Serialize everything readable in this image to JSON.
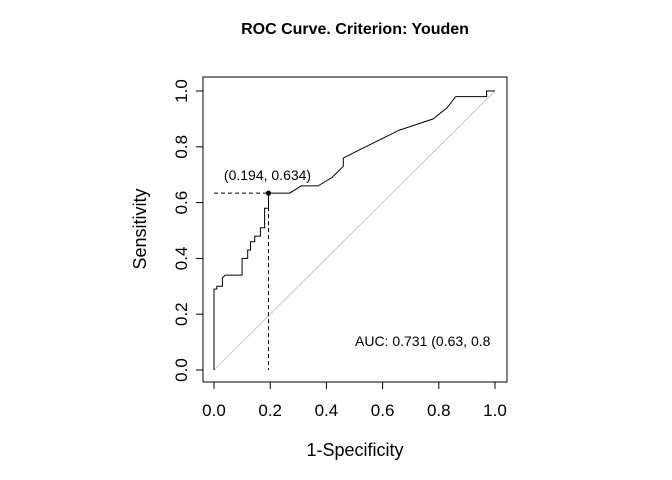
{
  "chart_data": {
    "type": "line",
    "title": "ROC Curve. Criterion: Youden",
    "xlabel": "1-Specificity",
    "ylabel": "Sensitivity",
    "xlim": [
      0,
      1
    ],
    "ylim": [
      0,
      1
    ],
    "x_ticks": [
      "0.0",
      "0.2",
      "0.4",
      "0.6",
      "0.8",
      "1.0"
    ],
    "y_ticks": [
      "0.0",
      "0.2",
      "0.4",
      "0.6",
      "0.8",
      "1.0"
    ],
    "grid": false,
    "series": [
      {
        "color": "#000000",
        "x": [
          0.0,
          0.0,
          0.0,
          0.01,
          0.01,
          0.03,
          0.03,
          0.04,
          0.05,
          0.1,
          0.1,
          0.12,
          0.12,
          0.13,
          0.13,
          0.145,
          0.145,
          0.165,
          0.165,
          0.18,
          0.18,
          0.194,
          0.194,
          0.27,
          0.31,
          0.37,
          0.42,
          0.46,
          0.46,
          0.52,
          0.58,
          0.66,
          0.72,
          0.78,
          0.83,
          0.86,
          0.97,
          0.97,
          1.0
        ],
        "y": [
          0.0,
          0.05,
          0.29,
          0.29,
          0.3,
          0.3,
          0.33,
          0.34,
          0.34,
          0.34,
          0.4,
          0.4,
          0.43,
          0.43,
          0.46,
          0.46,
          0.48,
          0.48,
          0.51,
          0.51,
          0.58,
          0.58,
          0.634,
          0.634,
          0.66,
          0.66,
          0.69,
          0.73,
          0.76,
          0.79,
          0.82,
          0.86,
          0.88,
          0.9,
          0.94,
          0.98,
          0.98,
          1.0,
          1.0
        ]
      }
    ],
    "reference_line": {
      "x": [
        0,
        1
      ],
      "y": [
        0,
        1
      ],
      "color": "#c8c8c8"
    },
    "optimal_point": {
      "x": 0.194,
      "y": 0.634,
      "label": "(0.194, 0.634)"
    },
    "annotation": "AUC: 0.731 (0.63, 0.8"
  }
}
